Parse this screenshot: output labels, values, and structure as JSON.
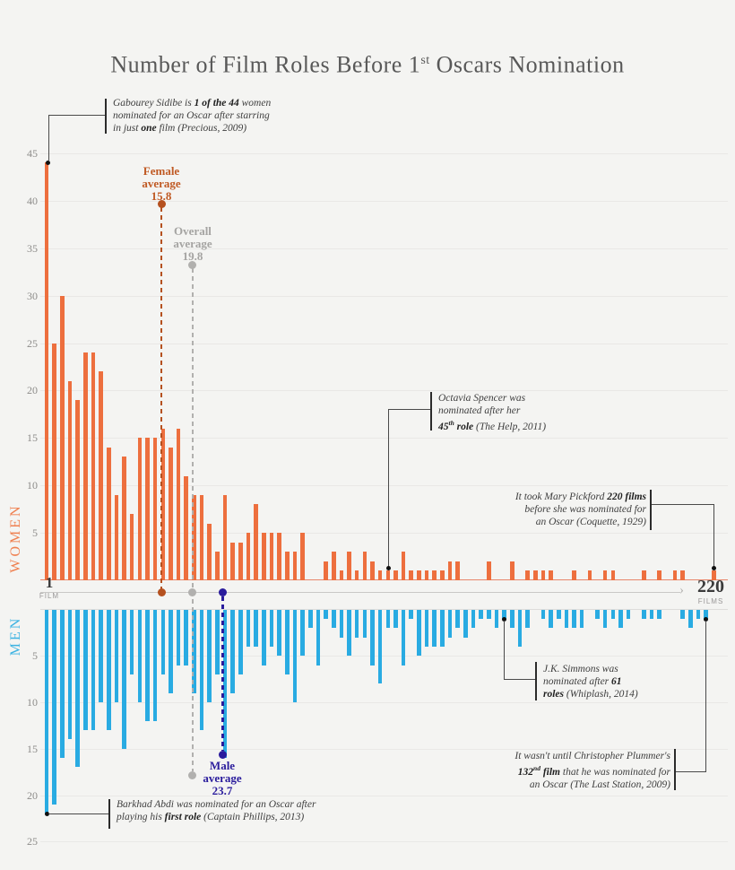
{
  "title": {
    "segments": [
      {
        "t": "Number of Film Roles Before 1"
      },
      {
        "t": "st",
        "sup": true
      },
      {
        "t": " Oscars Nomination"
      }
    ]
  },
  "axes": {
    "women_label": "WOMEN",
    "men_label": "MEN",
    "women_ticks": [
      5,
      10,
      15,
      20,
      25,
      30,
      35,
      40,
      45
    ],
    "men_ticks": [
      5,
      10,
      15,
      20,
      25
    ],
    "x_start": "1",
    "x_start_unit": "FILM",
    "x_end": "220",
    "x_end_unit": "FILMS",
    "arrow_glyph": "›"
  },
  "averages": {
    "female": {
      "line1": "Female",
      "line2": "average",
      "value": "15.8",
      "value_num": 15.8,
      "color": "#b5511f"
    },
    "overall": {
      "line1": "Overall",
      "line2": "average",
      "value": "19.8",
      "value_num": 19.8,
      "color": "#b1b0ae"
    },
    "male": {
      "line1": "Male",
      "line2": "average",
      "value": "23.7",
      "value_num": 23.7,
      "color": "#2a1c9c"
    }
  },
  "annotations": {
    "gabourey": {
      "segments": [
        {
          "t": "Gabourey Sidibe is "
        },
        {
          "t": "1 of the 44",
          "b": true
        },
        {
          "t": " women"
        },
        {
          "br": true
        },
        {
          "t": "nominated for an Oscar after starring"
        },
        {
          "br": true
        },
        {
          "t": "in just "
        },
        {
          "t": "one",
          "b": true
        },
        {
          "t": " film (Precious, 2009)"
        }
      ]
    },
    "octavia": {
      "segments": [
        {
          "t": "Octavia Spencer was"
        },
        {
          "br": true
        },
        {
          "t": "nominated after her"
        },
        {
          "br": true
        },
        {
          "t": "45",
          "b": true
        },
        {
          "t": "th",
          "b": true,
          "sup": true
        },
        {
          "t": " role",
          "b": true
        },
        {
          "t": " (The Help, 2011)"
        }
      ]
    },
    "pickford": {
      "segments": [
        {
          "t": "It took Mary Pickford "
        },
        {
          "t": "220 films",
          "b": true
        },
        {
          "br": true
        },
        {
          "t": "before she was nominated for"
        },
        {
          "br": true
        },
        {
          "t": "an Oscar (Coquette, 1929)"
        }
      ]
    },
    "jk": {
      "segments": [
        {
          "t": "J.K. Simmons was"
        },
        {
          "br": true
        },
        {
          "t": "nominated after "
        },
        {
          "t": "61",
          "b": true
        },
        {
          "br": true
        },
        {
          "t": "roles",
          "b": true
        },
        {
          "t": " (Whiplash, 2014)"
        }
      ]
    },
    "plummer": {
      "segments": [
        {
          "t": "It wasn't until Christopher Plummer's"
        },
        {
          "br": true
        },
        {
          "t": "132",
          "b": true
        },
        {
          "t": "nd",
          "b": true,
          "sup": true
        },
        {
          "t": " film",
          "b": true
        },
        {
          "t": " that he was nominated for"
        },
        {
          "br": true
        },
        {
          "t": "an Oscar (The Last Station, 2009)"
        }
      ]
    },
    "barkhad": {
      "segments": [
        {
          "t": "Barkhad Abdi was nominated for an Oscar after"
        },
        {
          "br": true
        },
        {
          "t": "playing his "
        },
        {
          "t": "first role",
          "b": true
        },
        {
          "t": " (Captain Phillips, 2013)"
        }
      ]
    }
  },
  "chart_data": {
    "type": "bar",
    "layout": "mirrored butterfly chart: women bars point up (orange), men bars point down (blue)",
    "x_axis": "Number of film roles before first Oscar nomination, ordinal slots from 1 film to 220 films",
    "y_axis": "Number of nominees",
    "women_ylim": [
      0,
      45
    ],
    "men_ylim": [
      0,
      25
    ],
    "grid": true,
    "series": [
      {
        "name": "Women",
        "color": "#ed6f3e",
        "values": [
          44,
          25,
          30,
          21,
          19,
          24,
          24,
          22,
          14,
          9,
          13,
          7,
          15,
          15,
          15,
          16,
          14,
          16,
          11,
          9,
          9,
          6,
          3,
          9,
          4,
          4,
          5,
          8,
          5,
          5,
          5,
          3,
          3,
          5,
          0,
          0,
          2,
          3,
          1,
          3,
          1,
          3,
          2,
          1,
          1,
          1,
          3,
          1,
          1,
          1,
          1,
          1,
          2,
          2,
          0,
          0,
          0,
          2,
          0,
          0,
          2,
          0,
          1,
          1,
          1,
          1,
          0,
          0,
          1,
          0,
          1,
          0,
          1,
          1,
          0,
          0,
          0,
          1,
          0,
          1,
          0,
          1,
          1,
          0,
          0,
          0,
          1
        ]
      },
      {
        "name": "Men",
        "color": "#29abe2",
        "values": [
          22,
          21,
          16,
          14,
          17,
          13,
          13,
          10,
          13,
          10,
          15,
          7,
          10,
          12,
          12,
          7,
          9,
          6,
          6,
          9,
          13,
          10,
          7,
          16,
          9,
          7,
          4,
          4,
          6,
          4,
          5,
          7,
          10,
          5,
          2,
          6,
          1,
          2,
          3,
          5,
          3,
          3,
          6,
          8,
          2,
          2,
          6,
          1,
          5,
          4,
          4,
          4,
          3,
          2,
          3,
          2,
          1,
          1,
          2,
          1,
          2,
          4,
          2,
          0,
          1,
          2,
          1,
          2,
          2,
          2,
          0,
          1,
          2,
          1,
          2,
          1,
          0,
          1,
          1,
          1,
          0,
          0,
          1,
          2,
          1,
          1,
          0
        ]
      }
    ],
    "highlights": [
      {
        "person": "Gabourey Sidibe",
        "films": 1,
        "gender": "Women",
        "slot_index": 0
      },
      {
        "person": "Octavia Spencer",
        "films": 45,
        "gender": "Women",
        "slot_index": 44
      },
      {
        "person": "Mary Pickford",
        "films": 220,
        "gender": "Women",
        "slot_index": 86
      },
      {
        "person": "Barkhad Abdi",
        "films": 1,
        "gender": "Men",
        "slot_index": 0
      },
      {
        "person": "J.K. Simmons",
        "films": 61,
        "gender": "Men",
        "slot_index": 59
      },
      {
        "person": "Christopher Plummer",
        "films": 132,
        "gender": "Men",
        "slot_index": 85
      }
    ]
  }
}
